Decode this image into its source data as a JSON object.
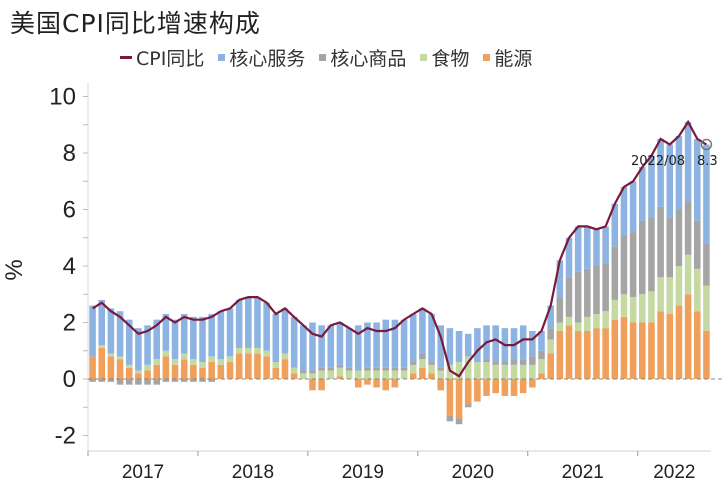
{
  "chart_data": {
    "type": "bar",
    "title": "美国CPI同比增速构成",
    "ylabel": "%",
    "xlabel": "",
    "ylim": [
      -2,
      10
    ],
    "yticks": [
      "10",
      "8",
      "6",
      "4",
      "2",
      "0",
      "-2"
    ],
    "ytick_values": [
      10,
      8,
      6,
      4,
      2,
      0,
      -2
    ],
    "year_labels": [
      "2017",
      "2018",
      "2019",
      "2020",
      "2021",
      "2022"
    ],
    "x_start": "2017/01",
    "x_end": "2022/08",
    "legend": [
      "CPI同比",
      "核心服务",
      "核心商品",
      "食物",
      "能源"
    ],
    "legend_placement": "top",
    "annotation": {
      "label": "2022/08",
      "value": "8.3"
    },
    "colors": {
      "cpi": "#7a1a3c",
      "services": "#8db3e2",
      "goods": "#a5a5a5",
      "food": "#c5daa2",
      "energy": "#f0a05a"
    },
    "series": [
      {
        "name": "CPI同比",
        "type": "line",
        "values": [
          2.5,
          2.7,
          2.4,
          2.2,
          1.9,
          1.6,
          1.7,
          1.9,
          2.2,
          2.0,
          2.2,
          2.1,
          2.1,
          2.2,
          2.4,
          2.5,
          2.8,
          2.9,
          2.9,
          2.7,
          2.3,
          2.5,
          2.2,
          1.9,
          1.6,
          1.5,
          1.9,
          2.0,
          1.8,
          1.6,
          1.8,
          1.7,
          1.7,
          1.8,
          2.1,
          2.3,
          2.5,
          2.3,
          1.5,
          0.3,
          0.1,
          0.6,
          1.0,
          1.3,
          1.4,
          1.2,
          1.2,
          1.4,
          1.4,
          1.7,
          2.6,
          4.2,
          5.0,
          5.4,
          5.4,
          5.3,
          5.4,
          6.2,
          6.8,
          7.0,
          7.5,
          7.9,
          8.5,
          8.3,
          8.6,
          9.1,
          8.5,
          8.3
        ]
      },
      {
        "name": "能源",
        "values": [
          0.8,
          1.1,
          0.8,
          0.7,
          0.4,
          0.2,
          0.3,
          0.5,
          0.8,
          0.5,
          0.7,
          0.5,
          0.4,
          0.6,
          0.5,
          0.6,
          0.9,
          0.9,
          0.9,
          0.8,
          0.4,
          0.7,
          0.2,
          0.0,
          -0.4,
          -0.4,
          0.0,
          0.1,
          0.0,
          -0.3,
          -0.2,
          -0.3,
          -0.4,
          -0.3,
          0.0,
          0.2,
          0.4,
          0.2,
          -0.4,
          -1.3,
          -1.4,
          -0.9,
          -0.8,
          -0.6,
          -0.5,
          -0.6,
          -0.6,
          -0.5,
          -0.3,
          0.2,
          0.9,
          1.7,
          1.9,
          1.7,
          1.7,
          1.8,
          1.8,
          2.1,
          2.2,
          2.0,
          2.0,
          2.0,
          2.4,
          2.3,
          2.6,
          3.0,
          2.4,
          1.7
        ]
      },
      {
        "name": "食物",
        "values": [
          0.0,
          0.1,
          0.1,
          0.1,
          0.1,
          0.1,
          0.2,
          0.2,
          0.2,
          0.2,
          0.2,
          0.2,
          0.2,
          0.2,
          0.2,
          0.2,
          0.2,
          0.2,
          0.2,
          0.2,
          0.2,
          0.2,
          0.2,
          0.2,
          0.2,
          0.3,
          0.3,
          0.3,
          0.3,
          0.3,
          0.3,
          0.3,
          0.3,
          0.3,
          0.3,
          0.3,
          0.3,
          0.3,
          0.3,
          0.5,
          0.6,
          0.8,
          0.6,
          0.6,
          0.5,
          0.5,
          0.5,
          0.5,
          0.5,
          0.5,
          0.5,
          0.3,
          0.3,
          0.3,
          0.5,
          0.5,
          0.6,
          0.7,
          0.8,
          0.9,
          1.0,
          1.1,
          1.2,
          1.3,
          1.4,
          1.4,
          1.5,
          1.6
        ]
      },
      {
        "name": "核心商品",
        "values": [
          -0.1,
          -0.1,
          -0.1,
          -0.2,
          -0.2,
          -0.2,
          -0.2,
          -0.2,
          -0.1,
          -0.1,
          -0.1,
          -0.1,
          -0.1,
          -0.1,
          0,
          0,
          0,
          0,
          0,
          0,
          0,
          0,
          0,
          0.1,
          0.1,
          0.1,
          0.1,
          0.1,
          0.1,
          0,
          0.1,
          0.1,
          0.1,
          0.1,
          0.1,
          0.1,
          0.2,
          0.1,
          0.1,
          -0.2,
          -0.2,
          -0.1,
          0,
          0.1,
          0.1,
          0.1,
          0.2,
          0.2,
          0.3,
          0.3,
          0.4,
          0.9,
          1.4,
          1.8,
          1.7,
          1.7,
          1.7,
          1.9,
          2.1,
          2.3,
          2.6,
          2.6,
          2.5,
          2.1,
          2.0,
          1.9,
          1.7,
          1.5
        ]
      },
      {
        "name": "核心服务",
        "values": [
          1.8,
          1.6,
          1.6,
          1.6,
          1.6,
          1.5,
          1.4,
          1.4,
          1.3,
          1.4,
          1.4,
          1.5,
          1.6,
          1.5,
          1.7,
          1.7,
          1.7,
          1.8,
          1.8,
          1.7,
          1.7,
          1.6,
          1.8,
          1.6,
          1.7,
          1.5,
          1.5,
          1.5,
          1.4,
          1.6,
          1.6,
          1.6,
          1.7,
          1.7,
          1.7,
          1.7,
          1.6,
          1.7,
          1.5,
          1.3,
          1.1,
          0.8,
          1.2,
          1.2,
          1.3,
          1.2,
          1.1,
          1.2,
          0.9,
          0.7,
          0.8,
          1.3,
          1.4,
          1.6,
          1.5,
          1.3,
          1.3,
          1.5,
          1.7,
          1.8,
          1.9,
          2.2,
          2.4,
          2.6,
          2.6,
          2.8,
          2.9,
          3.5
        ]
      }
    ]
  }
}
